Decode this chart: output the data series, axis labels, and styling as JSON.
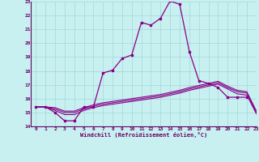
{
  "xlabel": "Windchill (Refroidissement éolien,°C)",
  "xlim": [
    -0.5,
    23
  ],
  "ylim": [
    14,
    23
  ],
  "xticks": [
    0,
    1,
    2,
    3,
    4,
    5,
    6,
    7,
    8,
    9,
    10,
    11,
    12,
    13,
    14,
    15,
    16,
    17,
    18,
    19,
    20,
    21,
    22,
    23
  ],
  "yticks": [
    14,
    15,
    16,
    17,
    18,
    19,
    20,
    21,
    22,
    23
  ],
  "bg_color": "#c8f0f0",
  "grid_color": "#a0d8d8",
  "line_color": "#880088",
  "main_line": {
    "x": [
      0,
      1,
      2,
      3,
      4,
      5,
      6,
      7,
      8,
      9,
      10,
      11,
      12,
      13,
      14,
      15,
      16,
      17,
      18,
      19,
      20,
      21,
      22
    ],
    "y": [
      15.4,
      15.4,
      15.0,
      14.4,
      14.4,
      15.4,
      15.4,
      17.85,
      18.05,
      18.9,
      19.15,
      21.5,
      21.3,
      21.8,
      23.05,
      22.8,
      19.4,
      17.3,
      17.1,
      16.8,
      16.1,
      16.1,
      16.1
    ]
  },
  "band_lines": [
    {
      "x": [
        0,
        1,
        2,
        3,
        4,
        5,
        6,
        7,
        8,
        9,
        10,
        11,
        12,
        13,
        14,
        15,
        16,
        17,
        18,
        19,
        20,
        21,
        22,
        23
      ],
      "y": [
        15.4,
        15.4,
        15.15,
        14.85,
        14.85,
        15.15,
        15.35,
        15.5,
        15.6,
        15.7,
        15.8,
        15.9,
        16.0,
        16.1,
        16.25,
        16.4,
        16.6,
        16.75,
        16.9,
        17.05,
        16.7,
        16.35,
        16.25,
        14.9
      ]
    },
    {
      "x": [
        0,
        1,
        2,
        3,
        4,
        5,
        6,
        7,
        8,
        9,
        10,
        11,
        12,
        13,
        14,
        15,
        16,
        17,
        18,
        19,
        20,
        21,
        22,
        23
      ],
      "y": [
        15.4,
        15.4,
        15.25,
        15.0,
        15.0,
        15.25,
        15.45,
        15.6,
        15.7,
        15.8,
        15.9,
        16.0,
        16.1,
        16.2,
        16.35,
        16.5,
        16.7,
        16.85,
        17.0,
        17.15,
        16.8,
        16.5,
        16.4,
        15.0
      ]
    },
    {
      "x": [
        0,
        1,
        2,
        3,
        4,
        5,
        6,
        7,
        8,
        9,
        10,
        11,
        12,
        13,
        14,
        15,
        16,
        17,
        18,
        19,
        20,
        21,
        22,
        23
      ],
      "y": [
        15.4,
        15.4,
        15.35,
        15.1,
        15.1,
        15.35,
        15.55,
        15.7,
        15.8,
        15.9,
        16.0,
        16.1,
        16.2,
        16.3,
        16.45,
        16.6,
        16.8,
        16.95,
        17.1,
        17.25,
        16.9,
        16.6,
        16.5,
        15.1
      ]
    }
  ]
}
